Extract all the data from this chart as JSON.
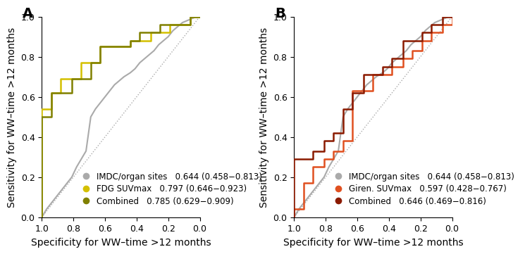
{
  "panel_A": {
    "title_label": "A",
    "xlabel": "Specificity for WW–time >12 months",
    "ylabel": "Sensitivity for WW–time >12 months",
    "curves": [
      {
        "name": "IMDC/organ sites",
        "auc": "0.644 (0.458−0.813)",
        "color": "#aaaaaa",
        "lw": 1.5,
        "step": false,
        "x": [
          1.0,
          0.97,
          0.94,
          0.91,
          0.88,
          0.84,
          0.81,
          0.78,
          0.75,
          0.72,
          0.69,
          0.66,
          0.63,
          0.6,
          0.57,
          0.54,
          0.51,
          0.48,
          0.44,
          0.41,
          0.38,
          0.35,
          0.32,
          0.29,
          0.26,
          0.23,
          0.2,
          0.17,
          0.14,
          0.11,
          0.08,
          0.05,
          0.02,
          0.0
        ],
        "y": [
          0.0,
          0.04,
          0.07,
          0.1,
          0.13,
          0.17,
          0.2,
          0.25,
          0.29,
          0.33,
          0.5,
          0.54,
          0.57,
          0.6,
          0.63,
          0.66,
          0.68,
          0.7,
          0.72,
          0.74,
          0.77,
          0.79,
          0.81,
          0.83,
          0.86,
          0.88,
          0.9,
          0.93,
          0.95,
          0.97,
          0.98,
          0.99,
          1.0,
          1.0
        ]
      },
      {
        "name": "FDG SUVmax",
        "auc": "0.797 (0.646−0.923)",
        "color": "#d4c000",
        "lw": 1.8,
        "step": true,
        "x": [
          1.0,
          1.0,
          0.94,
          0.94,
          0.88,
          0.88,
          0.81,
          0.81,
          0.75,
          0.75,
          0.69,
          0.69,
          0.63,
          0.63,
          0.56,
          0.56,
          0.5,
          0.5,
          0.44,
          0.44,
          0.38,
          0.38,
          0.31,
          0.31,
          0.25,
          0.25,
          0.19,
          0.19,
          0.13,
          0.13,
          0.06,
          0.06,
          0.0,
          0.0
        ],
        "y": [
          0.0,
          0.54,
          0.54,
          0.62,
          0.62,
          0.69,
          0.69,
          0.69,
          0.69,
          0.77,
          0.77,
          0.77,
          0.77,
          0.85,
          0.85,
          0.85,
          0.85,
          0.85,
          0.85,
          0.88,
          0.88,
          0.88,
          0.88,
          0.92,
          0.92,
          0.92,
          0.92,
          0.96,
          0.96,
          0.96,
          0.96,
          1.0,
          1.0,
          1.0
        ]
      },
      {
        "name": "Combined",
        "auc": "0.785 (0.629−0.909)",
        "color": "#808000",
        "lw": 1.8,
        "step": true,
        "x": [
          1.0,
          1.0,
          0.94,
          0.94,
          0.88,
          0.88,
          0.81,
          0.81,
          0.75,
          0.75,
          0.69,
          0.69,
          0.63,
          0.63,
          0.56,
          0.56,
          0.5,
          0.5,
          0.44,
          0.44,
          0.38,
          0.38,
          0.31,
          0.31,
          0.25,
          0.25,
          0.19,
          0.19,
          0.13,
          0.13,
          0.06,
          0.06,
          0.0,
          0.0
        ],
        "y": [
          0.0,
          0.5,
          0.5,
          0.62,
          0.62,
          0.62,
          0.62,
          0.69,
          0.69,
          0.69,
          0.69,
          0.77,
          0.77,
          0.85,
          0.85,
          0.85,
          0.85,
          0.85,
          0.85,
          0.88,
          0.88,
          0.92,
          0.92,
          0.92,
          0.92,
          0.96,
          0.96,
          0.96,
          0.96,
          0.96,
          0.96,
          1.0,
          1.0,
          1.0
        ]
      }
    ]
  },
  "panel_B": {
    "title_label": "B",
    "xlabel": "Specificity for WW–time >12 months",
    "ylabel": "Sensitivity for WW–time >12 months",
    "curves": [
      {
        "name": "IMDC/organ sites",
        "auc": "0.644 (0.458−0.813)",
        "color": "#aaaaaa",
        "lw": 1.5,
        "step": false,
        "x": [
          1.0,
          0.97,
          0.94,
          0.91,
          0.88,
          0.84,
          0.81,
          0.78,
          0.75,
          0.72,
          0.69,
          0.66,
          0.63,
          0.6,
          0.57,
          0.54,
          0.51,
          0.48,
          0.44,
          0.41,
          0.38,
          0.35,
          0.32,
          0.29,
          0.26,
          0.23,
          0.2,
          0.17,
          0.14,
          0.11,
          0.08,
          0.05,
          0.02,
          0.0
        ],
        "y": [
          0.0,
          0.04,
          0.07,
          0.1,
          0.13,
          0.17,
          0.2,
          0.25,
          0.29,
          0.33,
          0.5,
          0.54,
          0.57,
          0.6,
          0.63,
          0.66,
          0.68,
          0.7,
          0.72,
          0.74,
          0.77,
          0.79,
          0.81,
          0.83,
          0.86,
          0.88,
          0.9,
          0.93,
          0.95,
          0.97,
          0.98,
          0.99,
          1.0,
          1.0
        ]
      },
      {
        "name": "Giren. SUVmax",
        "auc": "0.597 (0.428−0.767)",
        "color": "#e05020",
        "lw": 1.8,
        "step": true,
        "x": [
          1.0,
          1.0,
          0.94,
          0.94,
          0.88,
          0.88,
          0.81,
          0.81,
          0.75,
          0.75,
          0.69,
          0.69,
          0.63,
          0.63,
          0.56,
          0.56,
          0.5,
          0.5,
          0.44,
          0.44,
          0.38,
          0.38,
          0.31,
          0.31,
          0.25,
          0.25,
          0.19,
          0.19,
          0.13,
          0.13,
          0.06,
          0.06,
          0.0,
          0.0
        ],
        "y": [
          0.0,
          0.04,
          0.04,
          0.17,
          0.17,
          0.25,
          0.25,
          0.29,
          0.29,
          0.33,
          0.33,
          0.38,
          0.38,
          0.63,
          0.63,
          0.63,
          0.63,
          0.71,
          0.71,
          0.71,
          0.71,
          0.75,
          0.75,
          0.79,
          0.79,
          0.83,
          0.83,
          0.88,
          0.88,
          0.92,
          0.92,
          0.96,
          0.96,
          1.0
        ]
      },
      {
        "name": "Combined",
        "auc": "0.646 (0.469−0.816)",
        "color": "#8b1a00",
        "lw": 1.8,
        "step": true,
        "x": [
          1.0,
          1.0,
          0.94,
          0.94,
          0.88,
          0.88,
          0.81,
          0.81,
          0.75,
          0.75,
          0.69,
          0.69,
          0.63,
          0.63,
          0.56,
          0.56,
          0.5,
          0.5,
          0.44,
          0.44,
          0.38,
          0.38,
          0.31,
          0.31,
          0.25,
          0.25,
          0.19,
          0.19,
          0.13,
          0.13,
          0.06,
          0.06,
          0.0,
          0.0
        ],
        "y": [
          0.0,
          0.29,
          0.29,
          0.29,
          0.29,
          0.33,
          0.33,
          0.38,
          0.38,
          0.42,
          0.42,
          0.54,
          0.54,
          0.62,
          0.62,
          0.71,
          0.71,
          0.71,
          0.71,
          0.75,
          0.75,
          0.79,
          0.79,
          0.88,
          0.88,
          0.88,
          0.88,
          0.92,
          0.92,
          0.96,
          0.96,
          1.0,
          1.0,
          1.0
        ]
      }
    ]
  },
  "legend_dot_size": 8,
  "background_color": "#ffffff",
  "axis_color": "#000000",
  "diagonal_color": "#aaaaaa",
  "diagonal_ls": "dotted",
  "tick_fontsize": 9,
  "label_fontsize": 10,
  "legend_fontsize": 8.5
}
